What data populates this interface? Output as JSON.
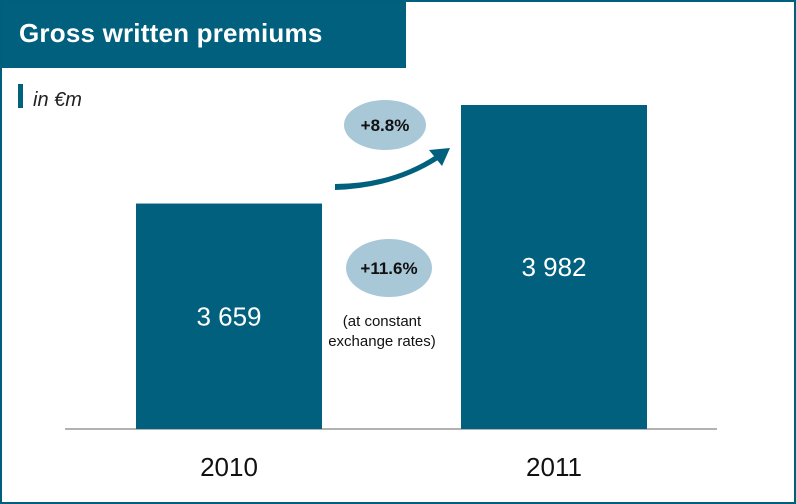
{
  "header": {
    "title": "Gross written premiums"
  },
  "unit_label": "in €m",
  "colors": {
    "bar": "#00607d",
    "bubble": "#a8c8d8",
    "header_bg": "#00607d"
  },
  "icons": {
    "growth_arrow": "curved-arrow-icon"
  },
  "chart_data": {
    "type": "bar",
    "categories": [
      "2010",
      "2011"
    ],
    "values": [
      3659,
      3982
    ],
    "value_labels": [
      "3 659",
      "3 982"
    ],
    "title": "Gross written premiums",
    "xlabel": "",
    "ylabel": "in €m",
    "grid": false,
    "legend": "none",
    "annotations": [
      {
        "text": "+8.8%",
        "type": "growth-bubble"
      },
      {
        "text": "+11.6%",
        "type": "growth-bubble",
        "note": "(at constant exchange rates)"
      }
    ]
  }
}
